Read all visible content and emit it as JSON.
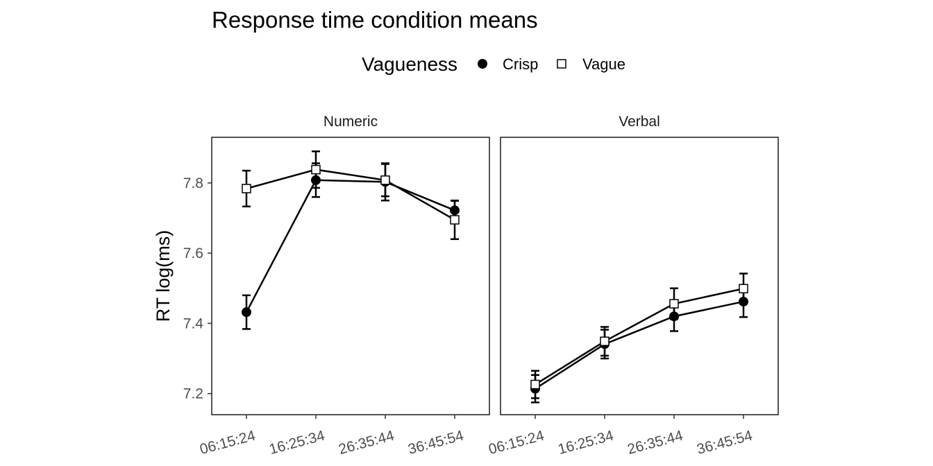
{
  "chart_data": {
    "type": "line",
    "title": "Response time condition means",
    "xlabel": "",
    "ylabel": "RT log(ms)",
    "legend": {
      "title": "Vagueness",
      "position": "top"
    },
    "categories": [
      "06:15:24",
      "16:25:34",
      "26:35:44",
      "36:45:54"
    ],
    "ylim": [
      7.14,
      7.93
    ],
    "yticks": [
      7.2,
      7.4,
      7.6,
      7.8
    ],
    "ytick_labels": [
      "7.2",
      "7.4",
      "7.6",
      "7.8"
    ],
    "grid": false,
    "panels": [
      {
        "name": "Numeric",
        "series": [
          {
            "name": "Crisp",
            "marker": "filled-circle",
            "values": [
              7.432,
              7.808,
              7.803,
              7.722
            ],
            "errors": [
              0.048,
              0.048,
              0.053,
              0.027
            ]
          },
          {
            "name": "Vague",
            "marker": "open-square",
            "values": [
              7.784,
              7.838,
              7.808,
              7.695
            ],
            "errors": [
              0.051,
              0.052,
              0.046,
              0.055
            ]
          }
        ]
      },
      {
        "name": "Verbal",
        "series": [
          {
            "name": "Crisp",
            "marker": "filled-circle",
            "values": [
              7.214,
              7.341,
              7.42,
              7.462
            ],
            "errors": [
              0.039,
              0.041,
              0.042,
              0.044
            ]
          },
          {
            "name": "Vague",
            "marker": "open-square",
            "values": [
              7.226,
              7.349,
              7.456,
              7.499
            ],
            "errors": [
              0.039,
              0.041,
              0.044,
              0.043
            ]
          }
        ]
      }
    ]
  }
}
